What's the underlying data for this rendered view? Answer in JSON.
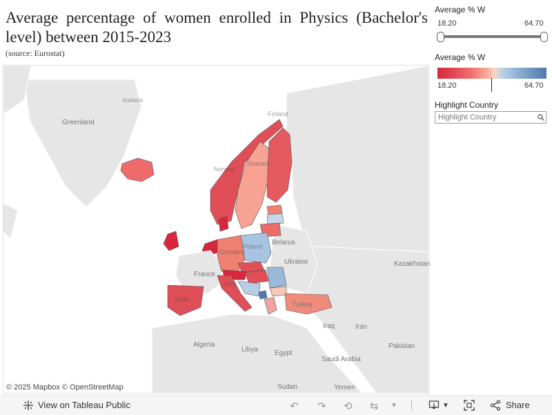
{
  "header": {
    "title": "Average percentage of women enrolled in Physics (Bachelor's level) between 2015-2023",
    "source": "(source: Eurostat)"
  },
  "map": {
    "attribution": "© 2025 Mapbox © OpenStreetMap",
    "place_labels": [
      "Greenland",
      "Belarus",
      "Ukraine",
      "France",
      "Kazakhstan",
      "Turkey",
      "Algeria",
      "Libya",
      "Egypt",
      "Iraq",
      "Iran",
      "Saudi Arabia",
      "Pakistan",
      "Sudan",
      "Yemen",
      "Iceland",
      "Norway",
      "Sweden",
      "Finland",
      "Germany",
      "Poland",
      "Spain",
      "Italy"
    ],
    "colors": {
      "low": "#d7263d",
      "mid": "#f7d8c8",
      "high": "#4f79ad"
    }
  },
  "filters": {
    "range_label": "Average % W",
    "range_min": "18.20",
    "range_max": "64.70",
    "legend_label": "Average % W",
    "legend_min": "18.20",
    "legend_max": "64.70",
    "highlight_label": "Highlight Country",
    "highlight_placeholder": "Highlight Country"
  },
  "footer": {
    "view_label": "View on Tableau Public",
    "share_label": "Share"
  }
}
